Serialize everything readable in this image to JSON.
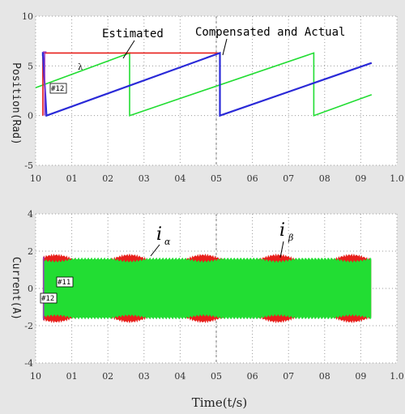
{
  "colors": {
    "background": "#e6e6e6",
    "plot_bg": "#ffffff",
    "grid": "#9a9a9a",
    "blue": "#2a2ad8",
    "red": "#e8201c",
    "green": "#22dd33",
    "purple": "#9b3cc4"
  },
  "chart_data": [
    {
      "type": "line",
      "ylabel": "Position(Rad)",
      "xlim": [
        0,
        1.0
      ],
      "ylim": [
        -5,
        10
      ],
      "grid": true,
      "xticks": [
        0,
        0.1,
        0.2,
        0.3,
        0.4,
        0.5,
        0.6,
        0.7,
        0.8,
        0.9,
        1.0
      ],
      "xtick_labels": [
        "10",
        "01",
        "02",
        "03",
        "04",
        "05",
        "06",
        "07",
        "08",
        "09",
        "1.0"
      ],
      "yticks": [
        -5,
        0,
        5,
        10
      ],
      "ytick_labels": [
        "-5",
        "0",
        "5",
        "10"
      ],
      "annotations": {
        "estimated": "Estimated",
        "compensated": "Compensated and Actual",
        "marker": "#12"
      },
      "series": [
        {
          "color": "#e8201c",
          "x": [
            0.02,
            0.02,
            0.51,
            0.51,
            0.93
          ],
          "y": [
            0,
            6.3,
            6.3,
            0,
            5.3
          ]
        },
        {
          "color": "#2a2ad8",
          "x": [
            0.02,
            0.02,
            0.03,
            0.51,
            0.51,
            0.93
          ],
          "y": [
            6.0,
            6.4,
            0,
            6.3,
            0,
            5.3
          ]
        },
        {
          "color": "#22dd33",
          "x": [
            0.0,
            0.26,
            0.26,
            0.77,
            0.77,
            0.93
          ],
          "y": [
            2.8,
            6.3,
            0,
            6.3,
            0,
            2.1
          ]
        }
      ]
    },
    {
      "type": "area",
      "ylabel": "Current(A)",
      "xlabel": "Time(t/s)",
      "xlim": [
        0,
        1.0
      ],
      "ylim": [
        -4,
        4
      ],
      "grid": true,
      "xticks": [
        0,
        0.1,
        0.2,
        0.3,
        0.4,
        0.5,
        0.6,
        0.7,
        0.8,
        0.9,
        1.0
      ],
      "xtick_labels": [
        "10",
        "01",
        "02",
        "03",
        "04",
        "05",
        "06",
        "07",
        "08",
        "09",
        "1.0"
      ],
      "yticks": [
        -4,
        -2,
        0,
        2,
        4
      ],
      "ytick_labels": [
        "-4",
        "-2",
        "0",
        "2",
        "4"
      ],
      "annotations": {
        "i_alpha": "i",
        "i_alpha_sub": "α",
        "i_beta": "i",
        "i_beta_sub": "β",
        "marker_11": "#11",
        "marker_12": "#12"
      },
      "series": [
        {
          "color": "#e8201c",
          "envelope": {
            "x_start": 0.02,
            "x_end": 0.93,
            "amplitude_peak": 1.8,
            "amplitude_trough": 1.3,
            "period": 0.205
          }
        },
        {
          "color": "#22dd33",
          "envelope": {
            "x_start": 0.02,
            "x_end": 0.93,
            "amplitude": 1.6
          }
        }
      ]
    }
  ]
}
